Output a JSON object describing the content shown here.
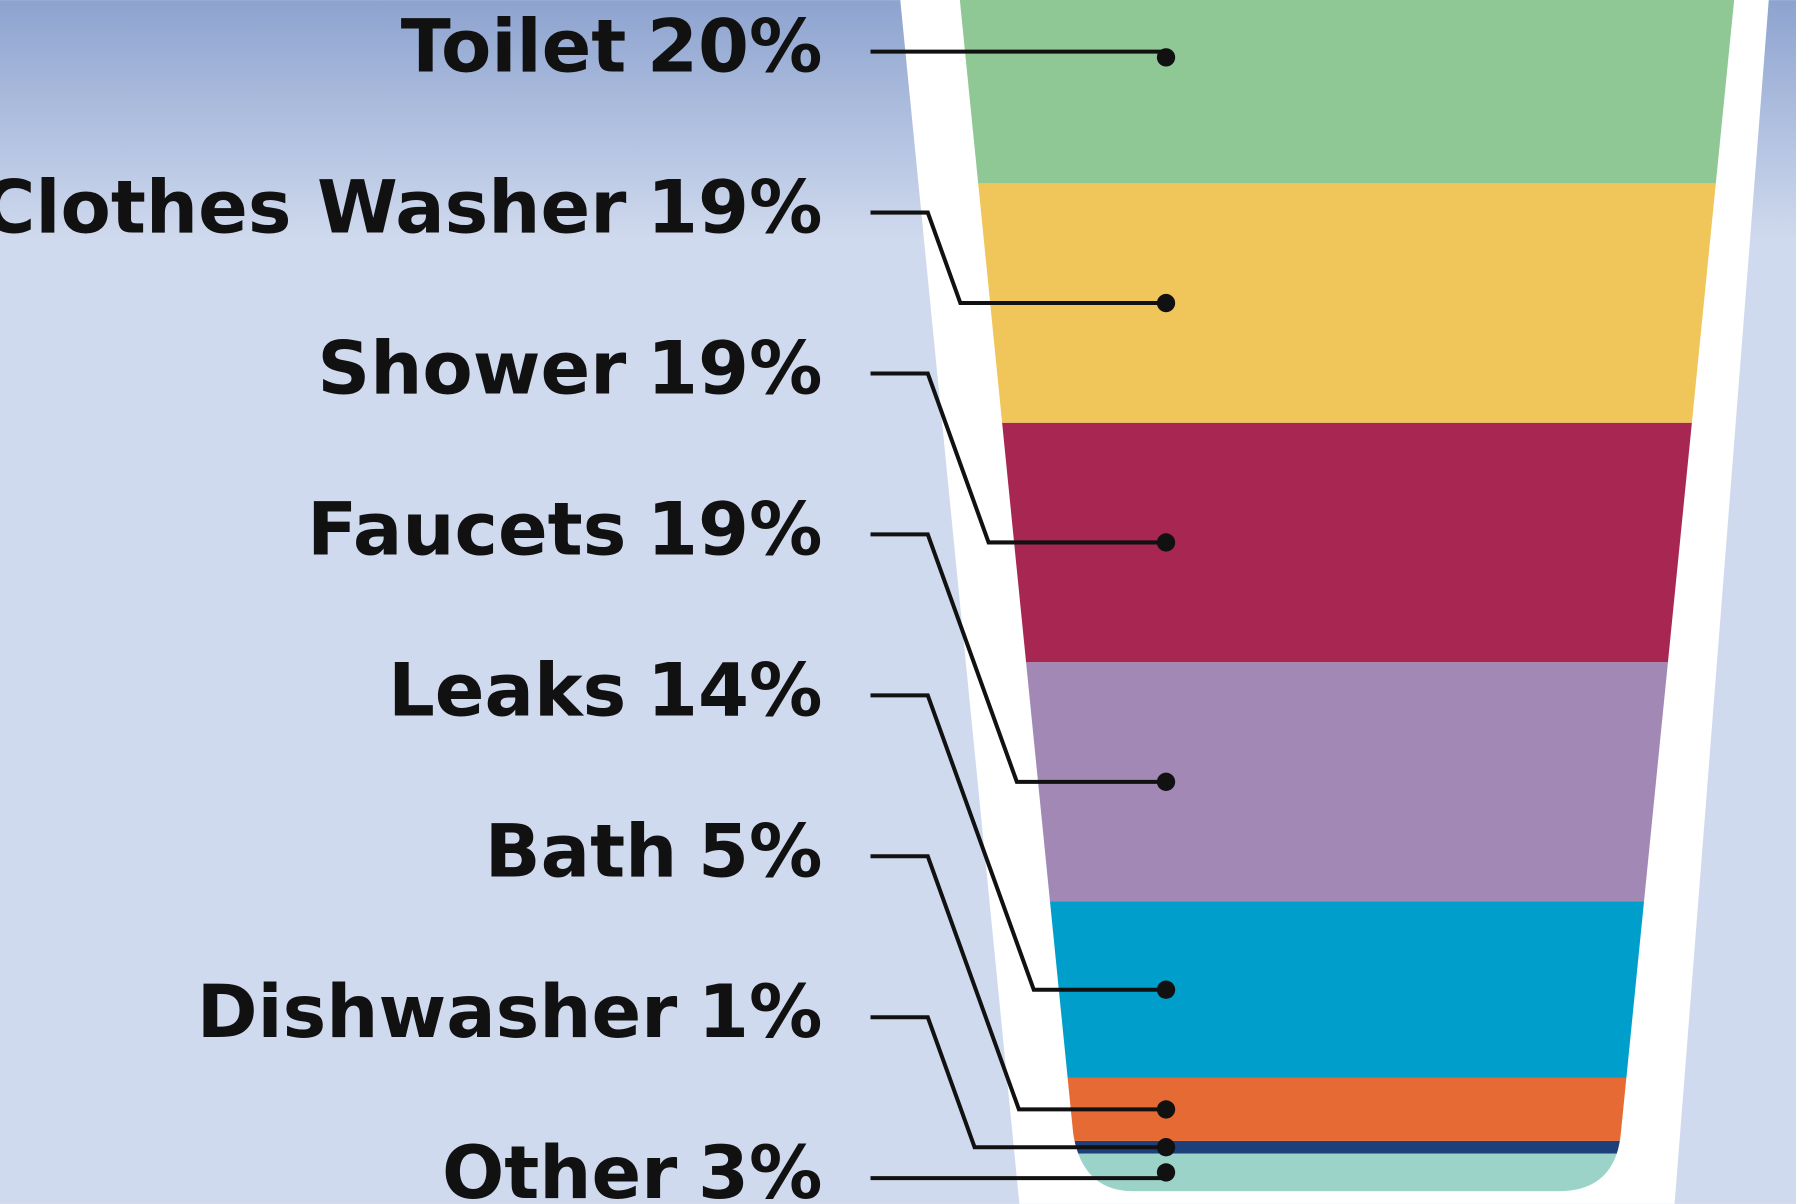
{
  "chart_data": {
    "type": "bar",
    "categories": [
      "Toilet",
      "Clothes Washer",
      "Shower",
      "Faucets",
      "Leaks",
      "Bath",
      "Dishwasher",
      "Other"
    ],
    "values": [
      20,
      19,
      19,
      19,
      14,
      5,
      1,
      3
    ],
    "value_labels": [
      "20%",
      "19%",
      "19%",
      "19%",
      "14%",
      "5%",
      "1%",
      "3%"
    ],
    "colors": [
      "#8fc895",
      "#f0c65a",
      "#a82752",
      "#a288b5",
      "#009fcb",
      "#e66a33",
      "#1d3f7a",
      "#9bd3c8"
    ]
  }
}
